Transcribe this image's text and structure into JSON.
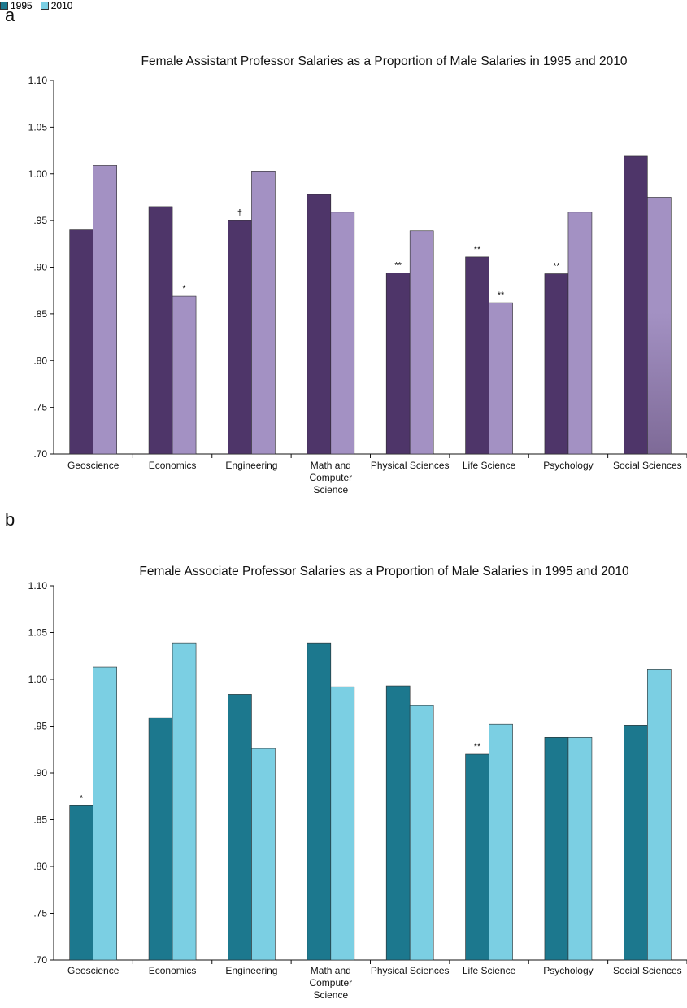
{
  "chart_data": [
    {
      "panel": "a",
      "type": "bar",
      "title": "Female Assistant Professor Salaries as a Proportion of Male Salaries in 1995 and 2010",
      "categories": [
        [
          "Geoscience"
        ],
        [
          "Economics"
        ],
        [
          "Engineering"
        ],
        [
          "Math and",
          "Computer",
          "Science"
        ],
        [
          "Physical Sciences"
        ],
        [
          "Life Science"
        ],
        [
          "Psychology"
        ],
        [
          "Social Sciences"
        ]
      ],
      "series": [
        {
          "name": "1995",
          "color": "#4e3569",
          "values": [
            0.94,
            0.965,
            0.95,
            0.978,
            0.894,
            0.911,
            0.893,
            1.019
          ]
        },
        {
          "name": "2010",
          "color": "#a391c3",
          "values": [
            1.009,
            0.869,
            1.003,
            0.959,
            0.939,
            0.862,
            0.959,
            0.975
          ]
        }
      ],
      "annotations": [
        [
          "",
          ""
        ],
        [
          "",
          "*"
        ],
        [
          "†",
          ""
        ],
        [
          "",
          ""
        ],
        [
          "**",
          ""
        ],
        [
          "**",
          "**"
        ],
        [
          "**",
          ""
        ],
        [
          "",
          ""
        ]
      ],
      "ylim": [
        0.7,
        1.1
      ],
      "yticks": [
        0.7,
        0.75,
        0.8,
        0.85,
        0.9,
        0.95,
        1.0,
        1.05,
        1.1
      ],
      "ytick_labels": [
        ".70",
        ".75",
        ".80",
        ".85",
        ".90",
        ".95",
        "1.00",
        "1.05",
        "1.10"
      ],
      "legend": "top-left"
    },
    {
      "panel": "b",
      "type": "bar",
      "title": "Female Associate Professor Salaries as a Proportion of Male Salaries in 1995 and 2010",
      "categories": [
        [
          "Geoscience"
        ],
        [
          "Economics"
        ],
        [
          "Engineering"
        ],
        [
          "Math and",
          "Computer",
          "Science"
        ],
        [
          "Physical Sciences"
        ],
        [
          "Life Science"
        ],
        [
          "Psychology"
        ],
        [
          "Social Sciences"
        ]
      ],
      "series": [
        {
          "name": "1995",
          "color": "#1c788e",
          "values": [
            0.865,
            0.959,
            0.984,
            1.039,
            0.993,
            0.92,
            0.938,
            0.951
          ]
        },
        {
          "name": "2010",
          "color": "#7bcfe3",
          "values": [
            1.013,
            1.039,
            0.926,
            0.992,
            0.972,
            0.952,
            0.938,
            1.011
          ]
        }
      ],
      "annotations": [
        [
          "*",
          ""
        ],
        [
          "",
          ""
        ],
        [
          "",
          ""
        ],
        [
          "",
          ""
        ],
        [
          "",
          ""
        ],
        [
          "**",
          ""
        ],
        [
          "",
          ""
        ],
        [
          "",
          ""
        ]
      ],
      "ylim": [
        0.7,
        1.1
      ],
      "yticks": [
        0.7,
        0.75,
        0.8,
        0.85,
        0.9,
        0.95,
        1.0,
        1.05,
        1.1
      ],
      "ytick_labels": [
        ".70",
        ".75",
        ".80",
        ".85",
        ".90",
        ".95",
        "1.00",
        "1.05",
        "1.10"
      ],
      "legend": "top-left"
    }
  ]
}
